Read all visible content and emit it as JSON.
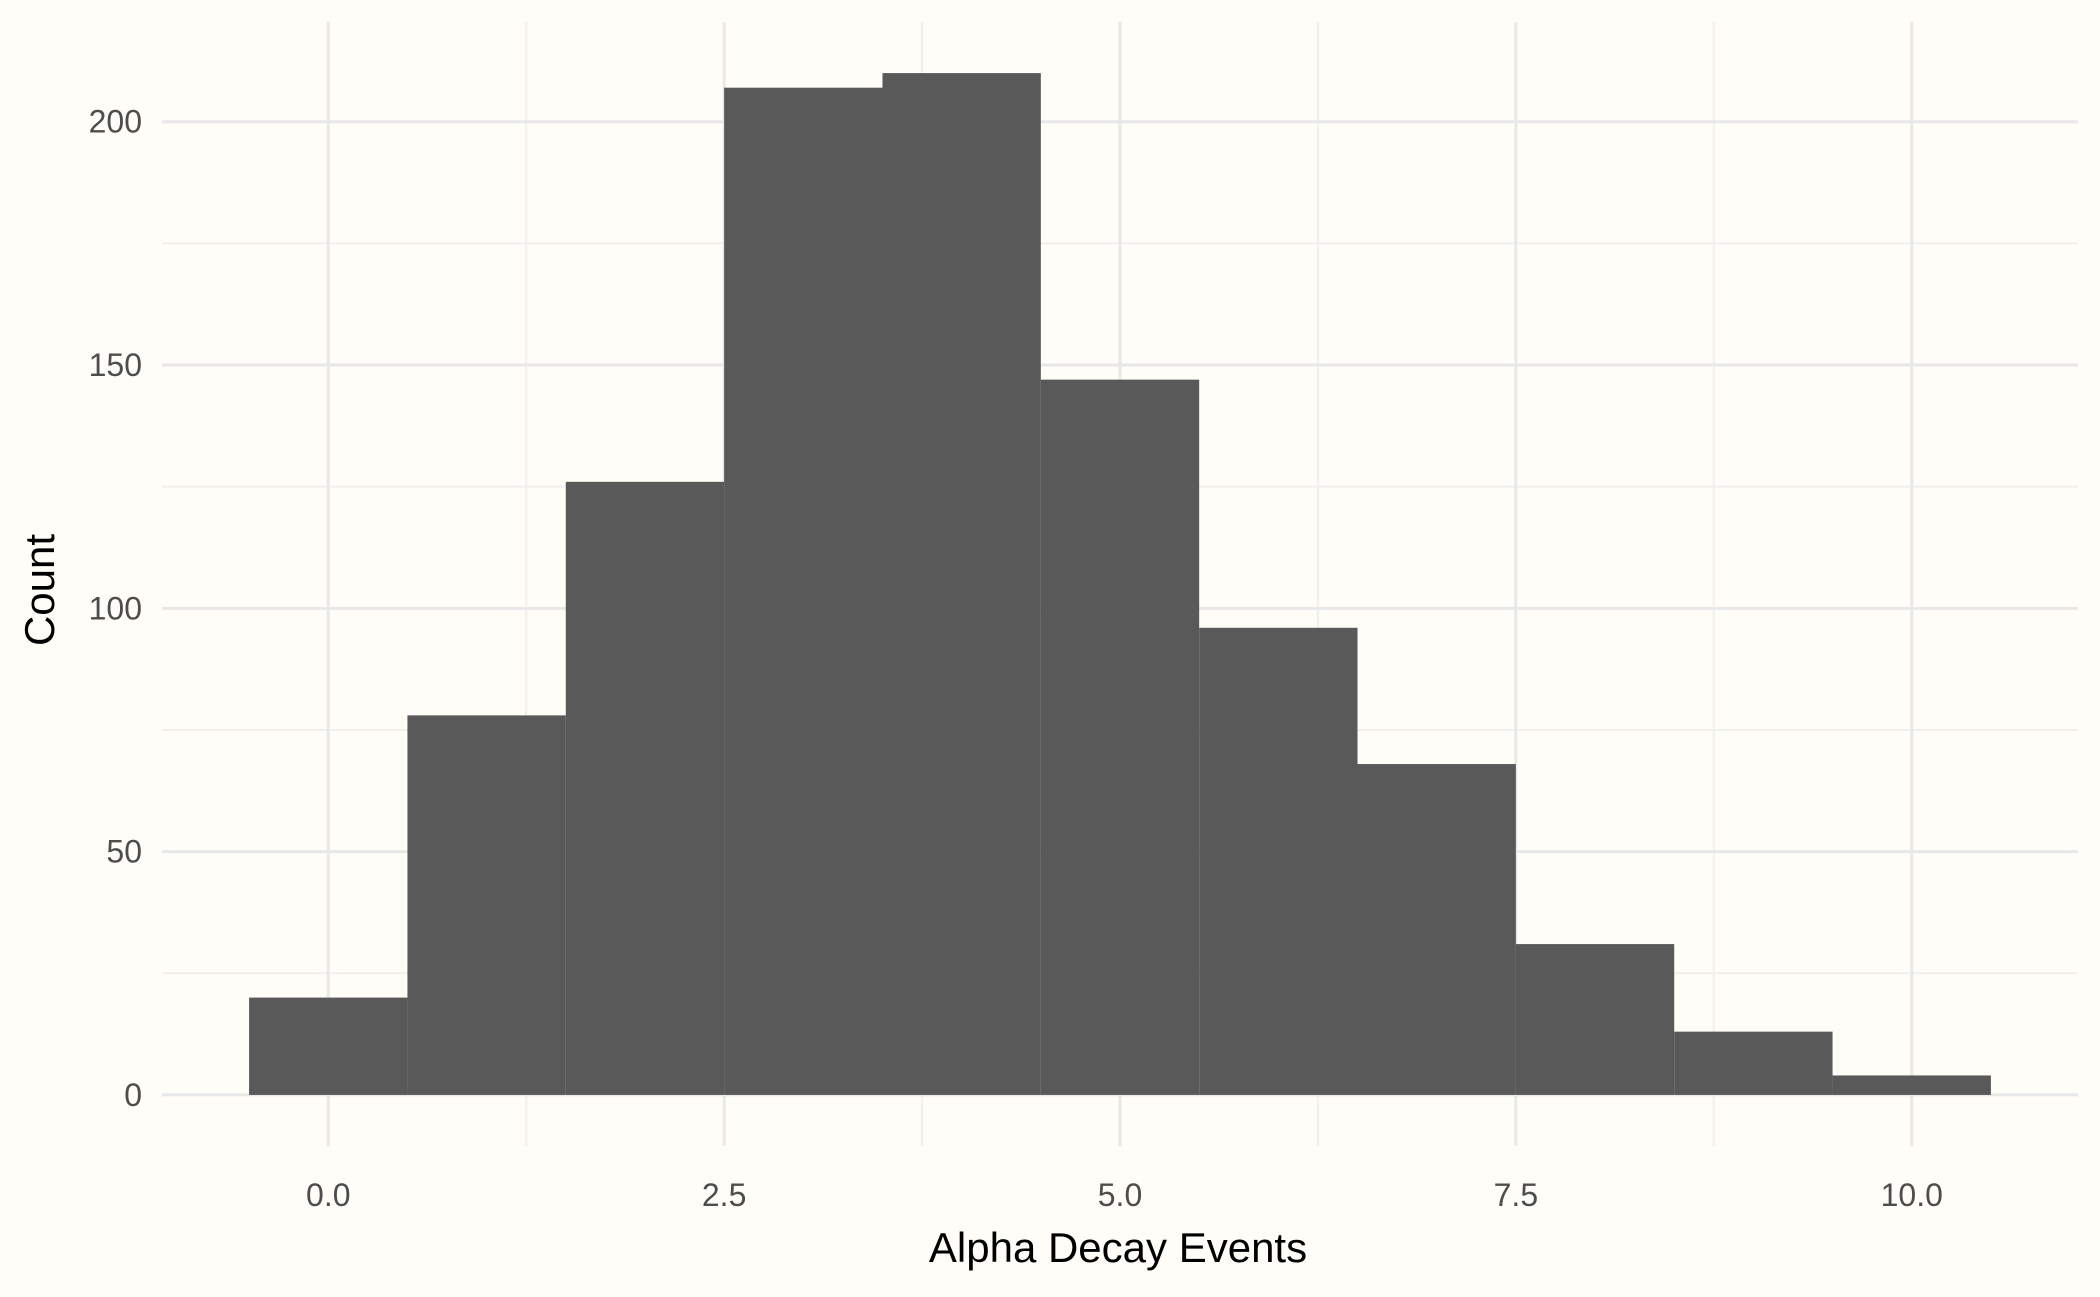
{
  "chart_data": {
    "type": "bar",
    "subtype": "histogram",
    "xlabel": "Alpha Decay Events",
    "ylabel": "Count",
    "bin_width": 1,
    "bins": [
      {
        "x": 0,
        "count": 20
      },
      {
        "x": 1,
        "count": 78
      },
      {
        "x": 2,
        "count": 126
      },
      {
        "x": 3,
        "count": 207
      },
      {
        "x": 4,
        "count": 210
      },
      {
        "x": 5,
        "count": 147
      },
      {
        "x": 6,
        "count": 96
      },
      {
        "x": 7,
        "count": 68
      },
      {
        "x": 8,
        "count": 31
      },
      {
        "x": 9,
        "count": 13
      },
      {
        "x": 10,
        "count": 4
      }
    ],
    "xlim": [
      -1.05,
      11.05
    ],
    "ylim": [
      -10.5,
      220.5
    ],
    "x_ticks": [
      0,
      2.5,
      5,
      7.5,
      10
    ],
    "x_tick_labels": [
      "0.0",
      "2.5",
      "5.0",
      "7.5",
      "10.0"
    ],
    "y_ticks": [
      0,
      50,
      100,
      150,
      200
    ],
    "y_tick_labels": [
      "0",
      "50",
      "100",
      "150",
      "200"
    ],
    "x_minor_ticks": [
      1.25,
      3.75,
      6.25,
      8.75
    ],
    "y_minor_ticks": [
      25,
      75,
      125,
      175
    ],
    "grid": true,
    "legend": "none",
    "colors": {
      "bar": "#595959",
      "background": "#fffdf7",
      "grid_major": "#e8e8e8",
      "grid_minor": "#f0f0ee",
      "tick_text": "#4d4d4d",
      "title_text": "#000000"
    }
  }
}
